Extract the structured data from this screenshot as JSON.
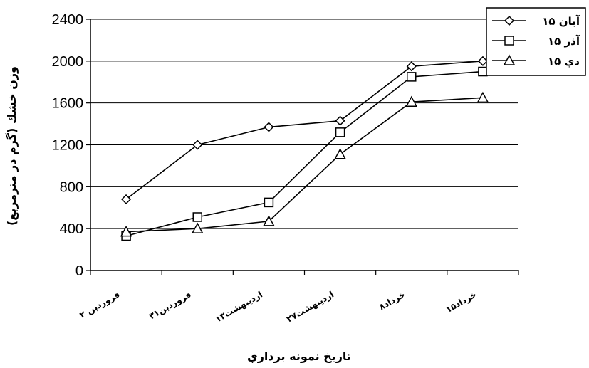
{
  "chart_data": {
    "type": "line",
    "title": "",
    "xlabel": "تاريخ نمونه برداري",
    "ylabel": "وزن خشك (گرم در مترمربع)",
    "categories": [
      "۲ فروردين",
      "۳۱فروردين",
      "۱۳ارديبهشت",
      "۲۷ارديبهشت",
      "۸خرداد",
      "۱۵خرداد"
    ],
    "ylim": [
      0,
      2400
    ],
    "yticks": [
      0,
      400,
      800,
      1200,
      1600,
      2000,
      2400
    ],
    "grid": true,
    "legend_position": "top-right",
    "series": [
      {
        "name": "۱۵ آبان",
        "marker": "diamond",
        "values": [
          680,
          1200,
          1370,
          1430,
          1950,
          2000
        ]
      },
      {
        "name": "۱۵ آذر",
        "marker": "square",
        "values": [
          330,
          510,
          650,
          1320,
          1850,
          1900
        ]
      },
      {
        "name": "۱۵ دي",
        "marker": "triangle",
        "values": [
          370,
          400,
          470,
          1110,
          1610,
          1650
        ]
      }
    ]
  }
}
